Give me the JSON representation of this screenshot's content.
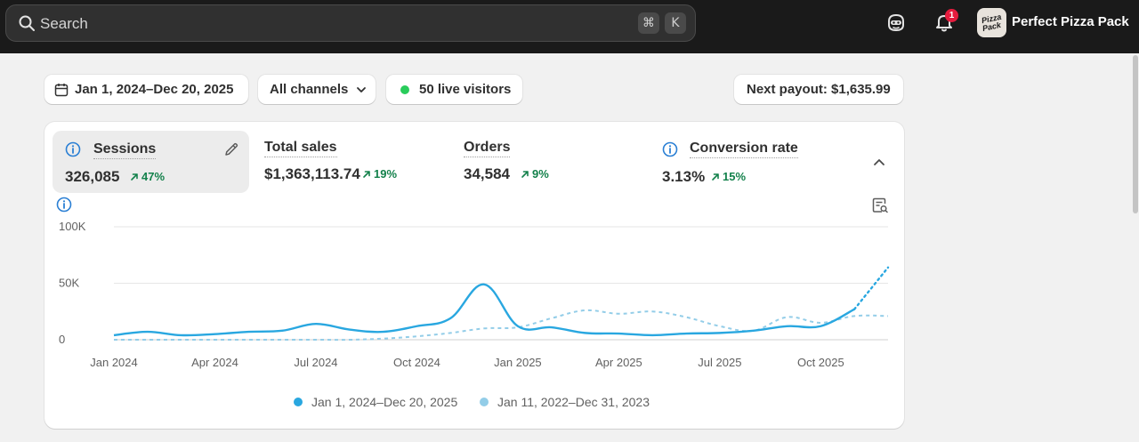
{
  "topbar": {
    "search_placeholder": "Search",
    "shortcut_keys": [
      "⌘",
      "K"
    ],
    "notification_count": "1",
    "store_logo_text": [
      "Pizza",
      "Pack"
    ],
    "store_name": "Perfect Pizza Pack"
  },
  "filters": {
    "date_range": "Jan 1, 2024–Dec 20, 2025",
    "channels": "All channels",
    "live_visitors": "50 live visitors",
    "payout": "Next payout: $1,635.99"
  },
  "metrics": [
    {
      "label": "Sessions",
      "value": "326,085",
      "delta": "47%"
    },
    {
      "label": "Total sales",
      "value": "$1,363,113.74",
      "delta": "19%"
    },
    {
      "label": "Orders",
      "value": "34,584",
      "delta": "9%"
    },
    {
      "label": "Conversion rate",
      "value": "3.13%",
      "delta": "15%"
    }
  ],
  "colors": {
    "primary_series": "#29a7e0",
    "comparison_series": "#93cde8",
    "positive_delta": "#13814b",
    "live_dot": "#29cc5b"
  },
  "chart_data": {
    "type": "line",
    "y_ticks": [
      "100K",
      "50K",
      "0"
    ],
    "ylim": [
      0,
      100000
    ],
    "x_ticks": [
      "Jan 2024",
      "Apr 2024",
      "Jul 2024",
      "Oct 2024",
      "Jan 2025",
      "Apr 2025",
      "Jul 2025",
      "Oct 2025"
    ],
    "x": [
      "Jan 2024",
      "Feb 2024",
      "Mar 2024",
      "Apr 2024",
      "May 2024",
      "Jun 2024",
      "Jul 2024",
      "Aug 2024",
      "Sep 2024",
      "Oct 2024",
      "Nov 2024",
      "Dec 2024",
      "Jan 2025",
      "Feb 2025",
      "Mar 2025",
      "Apr 2025",
      "May 2025",
      "Jun 2025",
      "Jul 2025",
      "Aug 2025",
      "Sep 2025",
      "Oct 2025",
      "Nov 2025",
      "Dec 2025"
    ],
    "series": [
      {
        "name": "Jan 1, 2024–Dec 20, 2025",
        "values": [
          4000,
          7000,
          4000,
          5000,
          7000,
          8000,
          14000,
          9000,
          7000,
          12000,
          19000,
          49000,
          12000,
          11000,
          6000,
          5500,
          4000,
          5500,
          6000,
          8000,
          12000,
          12000,
          27000,
          64000
        ],
        "projected_from_index": 22
      },
      {
        "name": "Jan 11, 2022–Dec 31, 2023",
        "values": [
          0,
          0,
          0,
          0,
          0,
          0,
          0,
          0,
          1000,
          3000,
          6000,
          10000,
          11000,
          19000,
          26000,
          23000,
          25000,
          20000,
          12000,
          8000,
          20000,
          15000,
          21000,
          21000
        ]
      }
    ]
  }
}
